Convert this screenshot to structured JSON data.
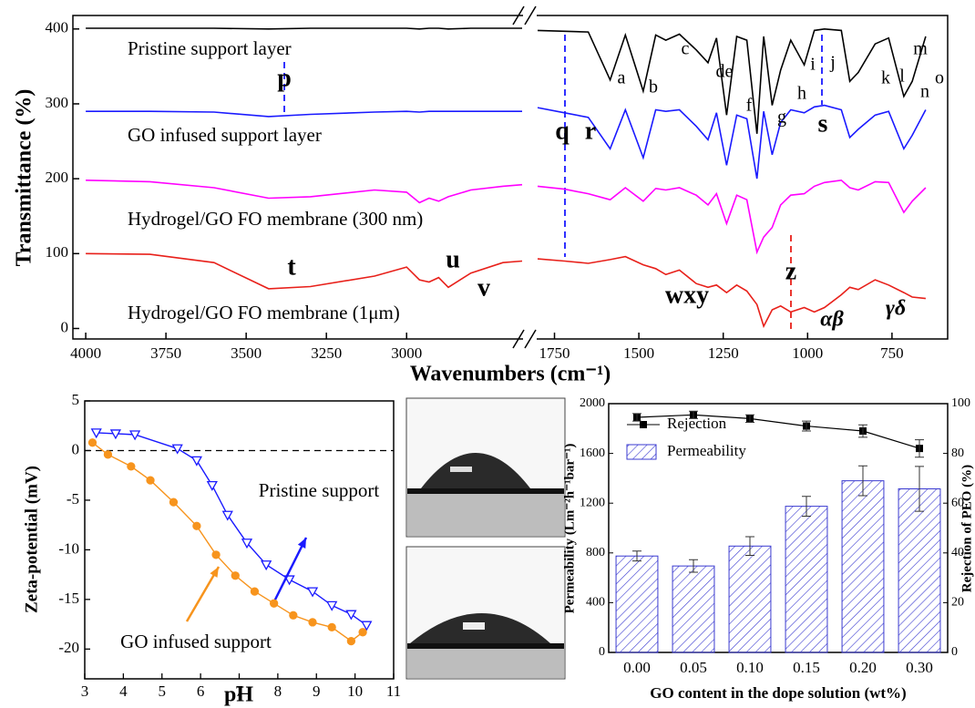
{
  "chart_data": [
    {
      "type": "line",
      "y_label": "Transmittance (%)",
      "x_label": "Wavenumbers (cm⁻¹)",
      "xlim": [
        4040,
        585
      ],
      "x_break": [
        2640,
        1800
      ],
      "ylim": [
        -14,
        418
      ],
      "xticks": [
        4000,
        3750,
        3500,
        3250,
        3000,
        1750,
        1500,
        1250,
        1000,
        750
      ],
      "yticks": [
        0,
        100,
        200,
        300,
        400
      ],
      "x": [
        4000,
        3800,
        3600,
        3430,
        3300,
        3100,
        3000,
        2960,
        2930,
        2900,
        2870,
        2800,
        2700,
        2640,
        2200,
        1800,
        1720,
        1650,
        1585,
        1540,
        1487,
        1450,
        1420,
        1380,
        1330,
        1295,
        1270,
        1240,
        1210,
        1180,
        1150,
        1130,
        1105,
        1080,
        1050,
        1010,
        980,
        950,
        900,
        875,
        850,
        800,
        760,
        715,
        690,
        650
      ],
      "series": [
        {
          "name": "Pristine support layer",
          "color": "#000000",
          "values": [
            401,
            401,
            401,
            400,
            401,
            401,
            401,
            400,
            401,
            401,
            400,
            401,
            401,
            401,
            null,
            398,
            397,
            396,
            332,
            392,
            317,
            392,
            385,
            393,
            372,
            355,
            388,
            285,
            390,
            385,
            260,
            390,
            298,
            345,
            385,
            352,
            398,
            400,
            398,
            330,
            342,
            380,
            388,
            310,
            330,
            390
          ]
        },
        {
          "name": "GO infused support layer",
          "color": "#1a1aff",
          "values": [
            290,
            290,
            289,
            283,
            286,
            289,
            290,
            289,
            290,
            290,
            290,
            290,
            290,
            290,
            null,
            295,
            288,
            282,
            240,
            292,
            228,
            292,
            290,
            292,
            270,
            252,
            288,
            218,
            285,
            280,
            200,
            290,
            232,
            275,
            292,
            288,
            296,
            298,
            292,
            255,
            266,
            285,
            290,
            240,
            258,
            292
          ]
        },
        {
          "name": "Hydrogel/GO FO membrane (300 nm)",
          "color": "#ff00ff",
          "values": [
            198,
            196,
            188,
            174,
            176,
            185,
            182,
            168,
            174,
            170,
            176,
            185,
            190,
            192,
            null,
            190,
            186,
            180,
            172,
            188,
            170,
            187,
            185,
            188,
            178,
            165,
            180,
            140,
            178,
            172,
            102,
            122,
            135,
            165,
            178,
            180,
            190,
            195,
            198,
            188,
            185,
            196,
            195,
            155,
            170,
            188
          ]
        },
        {
          "name": "Hydrogel/GO FO membrane (1μm)",
          "color": "#e8201a",
          "values": [
            100,
            99,
            88,
            53,
            56,
            70,
            82,
            65,
            62,
            68,
            55,
            74,
            88,
            90,
            null,
            93,
            90,
            87,
            92,
            96,
            85,
            80,
            72,
            78,
            60,
            55,
            58,
            48,
            58,
            50,
            32,
            3,
            25,
            30,
            22,
            28,
            22,
            28,
            45,
            55,
            52,
            65,
            58,
            48,
            42,
            40
          ]
        }
      ],
      "annotations": [
        "a",
        "b",
        "c",
        "de",
        "f",
        "g",
        "h",
        "i",
        "j",
        "k",
        "l",
        "m",
        "n",
        "o",
        "p",
        "q",
        "r",
        "s",
        "t",
        "u",
        "v",
        "wxy",
        "z",
        "αβ",
        "γδ"
      ]
    },
    {
      "type": "line",
      "y_label": "Zeta-potential (mV)",
      "x_label": "pH",
      "xlim": [
        3,
        11
      ],
      "ylim": [
        -23,
        5
      ],
      "xticks": [
        3,
        4,
        5,
        6,
        7,
        8,
        9,
        10,
        11
      ],
      "yticks": [
        5,
        0,
        -5,
        -10,
        -15,
        -20
      ],
      "reference_line": 0,
      "series": [
        {
          "name": "Pristine support",
          "color": "#1a1aff",
          "marker": "triangle-down",
          "x": [
            3.3,
            3.8,
            4.3,
            5.4,
            5.9,
            6.3,
            6.7,
            7.2,
            7.7,
            8.3,
            8.9,
            9.4,
            9.9,
            10.3
          ],
          "values": [
            1.8,
            1.7,
            1.6,
            0.2,
            -1.0,
            -3.5,
            -6.5,
            -9.3,
            -11.5,
            -13.0,
            -14.2,
            -15.6,
            -16.5,
            -17.6
          ]
        },
        {
          "name": "GO infused support",
          "color": "#f7941d",
          "marker": "circle",
          "x": [
            3.2,
            3.6,
            4.2,
            4.7,
            5.3,
            5.9,
            6.4,
            6.9,
            7.4,
            7.9,
            8.4,
            8.9,
            9.4,
            9.9,
            10.2
          ],
          "values": [
            0.8,
            -0.4,
            -1.6,
            -3.0,
            -5.2,
            -7.6,
            -10.5,
            -12.6,
            -14.2,
            -15.4,
            -16.6,
            -17.3,
            -17.8,
            -19.2,
            -18.3
          ]
        }
      ]
    },
    {
      "type": "combo",
      "x_label": "GO content in the dope solution (wt%)",
      "y_label": "Permeability (Lm⁻²h⁻¹bar⁻¹)",
      "y2_label": "Rejection of PEO (%)",
      "categories": [
        "0.00",
        "0.05",
        "0.10",
        "0.15",
        "0.20",
        "0.30"
      ],
      "ylim": [
        0,
        2000
      ],
      "yticks": [
        0,
        400,
        800,
        1200,
        1600,
        2000
      ],
      "y2lim": [
        0,
        100
      ],
      "y2ticks": [
        0,
        20,
        40,
        60,
        80,
        100
      ],
      "legend": "upper left",
      "series": [
        {
          "name": "Rejection",
          "type": "line",
          "axis": "y2",
          "color": "#000000",
          "values": [
            94.5,
            95.5,
            94,
            91,
            89,
            82
          ],
          "errors": [
            1.5,
            1.5,
            1.5,
            2,
            2.5,
            3.5
          ]
        },
        {
          "name": "Permeability",
          "type": "bar",
          "color": "#3a3ad0",
          "values": [
            775,
            695,
            855,
            1175,
            1380,
            1315
          ],
          "errors": [
            40,
            50,
            75,
            80,
            120,
            180
          ]
        }
      ]
    }
  ]
}
